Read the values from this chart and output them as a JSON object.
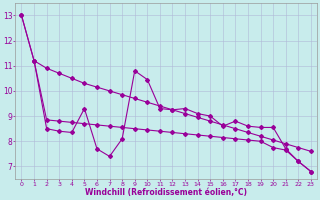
{
  "xlabel": "Windchill (Refroidissement éolien,°C)",
  "background_color": "#c8ecec",
  "line_color": "#990099",
  "ylim": [
    6.5,
    13.5
  ],
  "xlim": [
    -0.5,
    23.5
  ],
  "yticks": [
    7,
    8,
    9,
    10,
    11,
    12,
    13
  ],
  "xticks": [
    0,
    1,
    2,
    3,
    4,
    5,
    6,
    7,
    8,
    9,
    10,
    11,
    12,
    13,
    14,
    15,
    16,
    17,
    18,
    19,
    20,
    21,
    22,
    23
  ],
  "s1_x": [
    0,
    1,
    2,
    3,
    4,
    5,
    6,
    7,
    8,
    9,
    10,
    11,
    12,
    13,
    14,
    15,
    16,
    17,
    18,
    19,
    20,
    21,
    22,
    23
  ],
  "s1_y": [
    13.0,
    11.2,
    10.9,
    10.7,
    10.5,
    10.3,
    10.15,
    10.0,
    9.85,
    9.7,
    9.55,
    9.4,
    9.25,
    9.1,
    8.95,
    8.8,
    8.65,
    8.5,
    8.35,
    8.2,
    8.05,
    7.9,
    7.75,
    7.6
  ],
  "s2_x": [
    0,
    1,
    2,
    3,
    4,
    5,
    6,
    7,
    8,
    9,
    10,
    11,
    12,
    13,
    14,
    15,
    16,
    17,
    18,
    19,
    20,
    21,
    22,
    23
  ],
  "s2_y": [
    13.0,
    11.2,
    8.5,
    8.4,
    8.35,
    9.3,
    7.7,
    7.4,
    8.1,
    10.8,
    10.45,
    9.3,
    9.25,
    9.3,
    9.1,
    9.0,
    8.6,
    8.8,
    8.6,
    8.55,
    8.55,
    7.7,
    7.2,
    6.8
  ],
  "s3_x": [
    1,
    2,
    3,
    4,
    5,
    6,
    7,
    8,
    9,
    10,
    11,
    12,
    13,
    14,
    15,
    16,
    17,
    18,
    19,
    20,
    21,
    22,
    23
  ],
  "s3_y": [
    11.2,
    8.85,
    8.8,
    8.75,
    8.7,
    8.65,
    8.6,
    8.55,
    8.5,
    8.45,
    8.4,
    8.35,
    8.3,
    8.25,
    8.2,
    8.15,
    8.1,
    8.05,
    8.0,
    7.75,
    7.65,
    7.2,
    6.8
  ]
}
